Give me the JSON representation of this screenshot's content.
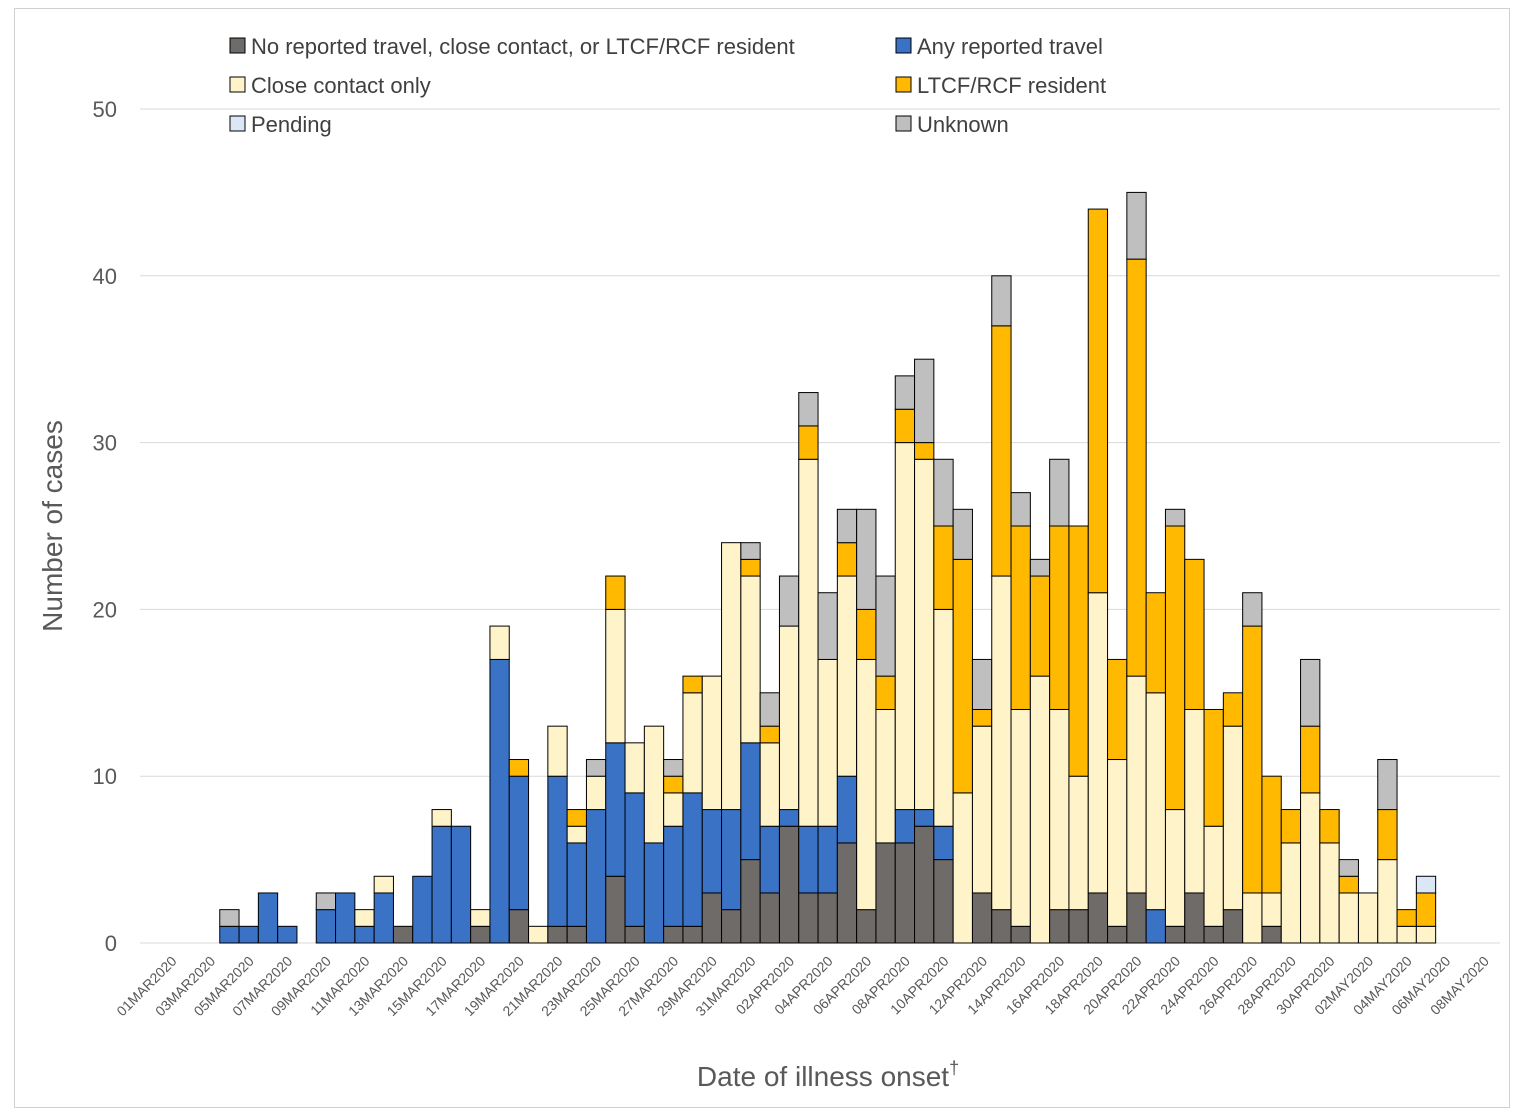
{
  "chart_data": {
    "type": "bar",
    "stacked": true,
    "title": "",
    "xlabel": "Date of illness onset",
    "xlabel_superscript": "†",
    "ylabel": "Number of cases",
    "ylim": [
      0,
      50
    ],
    "yticks": [
      0,
      10,
      20,
      30,
      40,
      50
    ],
    "grid": true,
    "legend_position": "top",
    "categories": [
      "01MAR2020",
      "02MAR2020",
      "03MAR2020",
      "04MAR2020",
      "05MAR2020",
      "06MAR2020",
      "07MAR2020",
      "08MAR2020",
      "09MAR2020",
      "10MAR2020",
      "11MAR2020",
      "12MAR2020",
      "13MAR2020",
      "14MAR2020",
      "15MAR2020",
      "16MAR2020",
      "17MAR2020",
      "18MAR2020",
      "19MAR2020",
      "20MAR2020",
      "21MAR2020",
      "22MAR2020",
      "23MAR2020",
      "24MAR2020",
      "25MAR2020",
      "26MAR2020",
      "27MAR2020",
      "28MAR2020",
      "29MAR2020",
      "30MAR2020",
      "31MAR2020",
      "01APR2020",
      "02APR2020",
      "03APR2020",
      "04APR2020",
      "05APR2020",
      "06APR2020",
      "07APR2020",
      "08APR2020",
      "09APR2020",
      "10APR2020",
      "11APR2020",
      "12APR2020",
      "13APR2020",
      "14APR2020",
      "15APR2020",
      "16APR2020",
      "17APR2020",
      "18APR2020",
      "19APR2020",
      "20APR2020",
      "21APR2020",
      "22APR2020",
      "23APR2020",
      "24APR2020",
      "25APR2020",
      "26APR2020",
      "27APR2020",
      "28APR2020",
      "29APR2020",
      "30APR2020",
      "01MAY2020",
      "02MAY2020",
      "03MAY2020",
      "04MAY2020",
      "05MAY2020",
      "06MAY2020",
      "07MAY2020",
      "08MAY2020"
    ],
    "tick_labels": [
      "01MAR2020",
      "03MAR2020",
      "05MAR2020",
      "07MAR2020",
      "09MAR2020",
      "11MAR2020",
      "13MAR2020",
      "15MAR2020",
      "17MAR2020",
      "19MAR2020",
      "21MAR2020",
      "23MAR2020",
      "25MAR2020",
      "27MAR2020",
      "29MAR2020",
      "31MAR2020",
      "02APR2020",
      "04APR2020",
      "06APR2020",
      "08APR2020",
      "10APR2020",
      "12APR2020",
      "14APR2020",
      "16APR2020",
      "18APR2020",
      "20APR2020",
      "22APR2020",
      "24APR2020",
      "26APR2020",
      "28APR2020",
      "30APR2020",
      "02MAY2020",
      "04MAY2020",
      "06MAY2020",
      "08MAY2020"
    ],
    "series": [
      {
        "name": "No reported travel, close contact, or LTCF/RCF resident",
        "color": "#6e6b68",
        "values": [
          0,
          0,
          0,
          0,
          0,
          0,
          0,
          0,
          0,
          0,
          0,
          0,
          1,
          0,
          0,
          0,
          1,
          0,
          2,
          0,
          1,
          1,
          0,
          4,
          1,
          0,
          1,
          1,
          3,
          2,
          5,
          3,
          7,
          3,
          3,
          6,
          2,
          6,
          6,
          7,
          5,
          0,
          3,
          2,
          1,
          0,
          2,
          2,
          3,
          1,
          3,
          0,
          1,
          3,
          1,
          2,
          0,
          1,
          0,
          0,
          0,
          0,
          0,
          0,
          0,
          0,
          0,
          0,
          0
        ]
      },
      {
        "name": "Any reported travel",
        "color": "#3a72c6",
        "values": [
          0,
          0,
          0,
          1,
          1,
          3,
          1,
          0,
          2,
          3,
          1,
          3,
          0,
          4,
          7,
          7,
          0,
          17,
          8,
          0,
          9,
          5,
          8,
          8,
          8,
          6,
          6,
          8,
          5,
          6,
          7,
          4,
          1,
          4,
          4,
          4,
          0,
          0,
          2,
          1,
          2,
          0,
          0,
          0,
          0,
          0,
          0,
          0,
          0,
          0,
          0,
          2,
          0,
          0,
          0,
          0,
          0,
          0,
          0,
          0,
          0,
          0,
          0,
          0,
          0,
          0,
          0,
          0,
          0
        ]
      },
      {
        "name": "Close contact only",
        "color": "#fff3c9",
        "values": [
          0,
          0,
          0,
          0,
          0,
          0,
          0,
          0,
          0,
          0,
          1,
          1,
          0,
          0,
          1,
          0,
          1,
          2,
          0,
          1,
          3,
          1,
          2,
          8,
          3,
          7,
          2,
          6,
          8,
          16,
          10,
          5,
          11,
          22,
          10,
          12,
          15,
          8,
          22,
          21,
          13,
          9,
          10,
          20,
          13,
          16,
          12,
          8,
          18,
          10,
          13,
          13,
          7,
          11,
          6,
          11,
          3,
          2,
          6,
          9,
          6,
          3,
          3,
          5,
          1,
          1,
          0,
          0,
          0
        ]
      },
      {
        "name": "LTCF/RCF resident",
        "color": "#ffb900",
        "values": [
          0,
          0,
          0,
          0,
          0,
          0,
          0,
          0,
          0,
          0,
          0,
          0,
          0,
          0,
          0,
          0,
          0,
          0,
          1,
          0,
          0,
          1,
          0,
          2,
          0,
          0,
          1,
          1,
          0,
          0,
          1,
          1,
          0,
          2,
          0,
          2,
          3,
          2,
          2,
          1,
          5,
          14,
          1,
          15,
          11,
          6,
          11,
          15,
          23,
          6,
          25,
          6,
          17,
          9,
          7,
          2,
          16,
          7,
          2,
          4,
          2,
          1,
          0,
          3,
          1,
          2,
          0,
          0,
          0
        ]
      },
      {
        "name": "Pending",
        "color": "#dbe6f7",
        "values": [
          0,
          0,
          0,
          0,
          0,
          0,
          0,
          0,
          0,
          0,
          0,
          0,
          0,
          0,
          0,
          0,
          0,
          0,
          0,
          0,
          0,
          0,
          0,
          0,
          0,
          0,
          0,
          0,
          0,
          0,
          0,
          0,
          0,
          0,
          0,
          0,
          0,
          0,
          0,
          0,
          0,
          0,
          0,
          0,
          0,
          0,
          0,
          0,
          0,
          0,
          0,
          0,
          0,
          0,
          0,
          0,
          0,
          0,
          0,
          0,
          0,
          0,
          0,
          0,
          0,
          1,
          0,
          0,
          0
        ]
      },
      {
        "name": "Unknown",
        "color": "#bfbfbf",
        "values": [
          0,
          0,
          0,
          1,
          0,
          0,
          0,
          0,
          1,
          0,
          0,
          0,
          0,
          0,
          0,
          0,
          0,
          0,
          0,
          0,
          0,
          0,
          1,
          0,
          0,
          0,
          1,
          0,
          0,
          0,
          1,
          2,
          3,
          2,
          4,
          2,
          6,
          6,
          2,
          5,
          4,
          3,
          3,
          3,
          2,
          1,
          4,
          0,
          0,
          0,
          4,
          0,
          1,
          0,
          0,
          0,
          2,
          0,
          0,
          4,
          0,
          1,
          0,
          3,
          0,
          0,
          0,
          0,
          0
        ]
      }
    ]
  }
}
